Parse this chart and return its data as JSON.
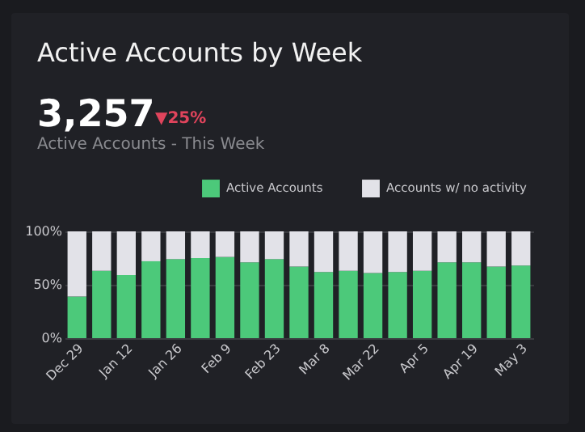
{
  "chart_data": {
    "type": "bar",
    "title": "Active Accounts by Week",
    "annotations": [
      "3,257",
      "▼25%",
      "Active Accounts - This Week"
    ],
    "categories": [
      "Dec 29",
      null,
      "Jan 12",
      null,
      "Jan 26",
      null,
      "Feb 9",
      null,
      "Feb 23",
      null,
      "Mar 8",
      null,
      "Mar 22",
      null,
      "Apr 5",
      null,
      "Apr 19",
      null,
      "May 3"
    ],
    "series": [
      {
        "name": "Active Accounts",
        "color": "#4cc97a",
        "values": [
          39,
          63,
          59,
          72,
          74,
          75,
          76,
          71,
          74,
          67,
          62,
          63,
          61,
          62,
          63,
          71,
          71,
          67,
          68
        ]
      },
      {
        "name": "Accounts w/ no activity",
        "color": "#e2e2e8",
        "values": [
          61,
          37,
          41,
          28,
          26,
          25,
          24,
          29,
          26,
          33,
          38,
          37,
          39,
          38,
          37,
          29,
          29,
          33,
          32
        ]
      }
    ],
    "stacked": true,
    "ylim": [
      0,
      100
    ],
    "yticks": [
      {
        "value": 0,
        "label": "0%"
      },
      {
        "value": 50,
        "label": "50%"
      },
      {
        "value": 100,
        "label": "100%"
      }
    ],
    "grid": "y",
    "legend": "top right"
  }
}
